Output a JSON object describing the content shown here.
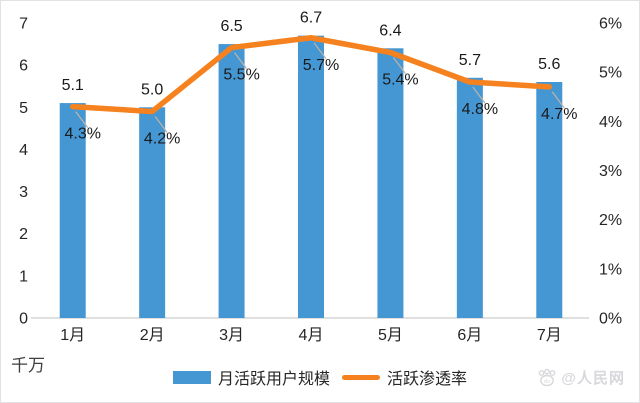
{
  "chart_data": {
    "type": "bar",
    "subtype": "bar-line-combo",
    "categories": [
      "1月",
      "2月",
      "3月",
      "4月",
      "5月",
      "6月",
      "7月"
    ],
    "series": [
      {
        "name": "月活跃用户规模",
        "type": "bar",
        "axis": "left",
        "color": "#4597d4",
        "values": [
          5.1,
          5.0,
          6.5,
          6.7,
          6.4,
          5.7,
          5.6
        ],
        "labels": [
          "5.1",
          "5.0",
          "6.5",
          "6.7",
          "6.4",
          "5.7",
          "5.6"
        ]
      },
      {
        "name": "活跃渗透率",
        "type": "line",
        "axis": "right",
        "color": "#f5821f",
        "values": [
          4.3,
          4.2,
          5.5,
          5.7,
          5.4,
          4.8,
          4.7
        ],
        "labels": [
          "4.3%",
          "4.2%",
          "5.5%",
          "5.7%",
          "5.4%",
          "4.8%",
          "4.7%"
        ]
      }
    ],
    "left_axis": {
      "min": 0,
      "max": 7,
      "ticks": [
        "0",
        "1",
        "2",
        "3",
        "4",
        "5",
        "6",
        "7"
      ],
      "unit_label": "千万"
    },
    "right_axis": {
      "min": 0,
      "max": 6,
      "ticks": [
        "0%",
        "1%",
        "2%",
        "3%",
        "4%",
        "5%",
        "6%"
      ]
    },
    "grid": false,
    "legend_position": "bottom",
    "axis_line_color": "#d6d6d6",
    "leader_line_color": "#c0b2a4"
  },
  "legend": {
    "items": [
      {
        "label": "月活跃用户规模",
        "swatch": "bar",
        "color": "#4597d4"
      },
      {
        "label": "活跃渗透率",
        "swatch": "line",
        "color": "#f5821f"
      }
    ]
  },
  "watermark": {
    "paw_text": "du",
    "text": "@人民网"
  }
}
